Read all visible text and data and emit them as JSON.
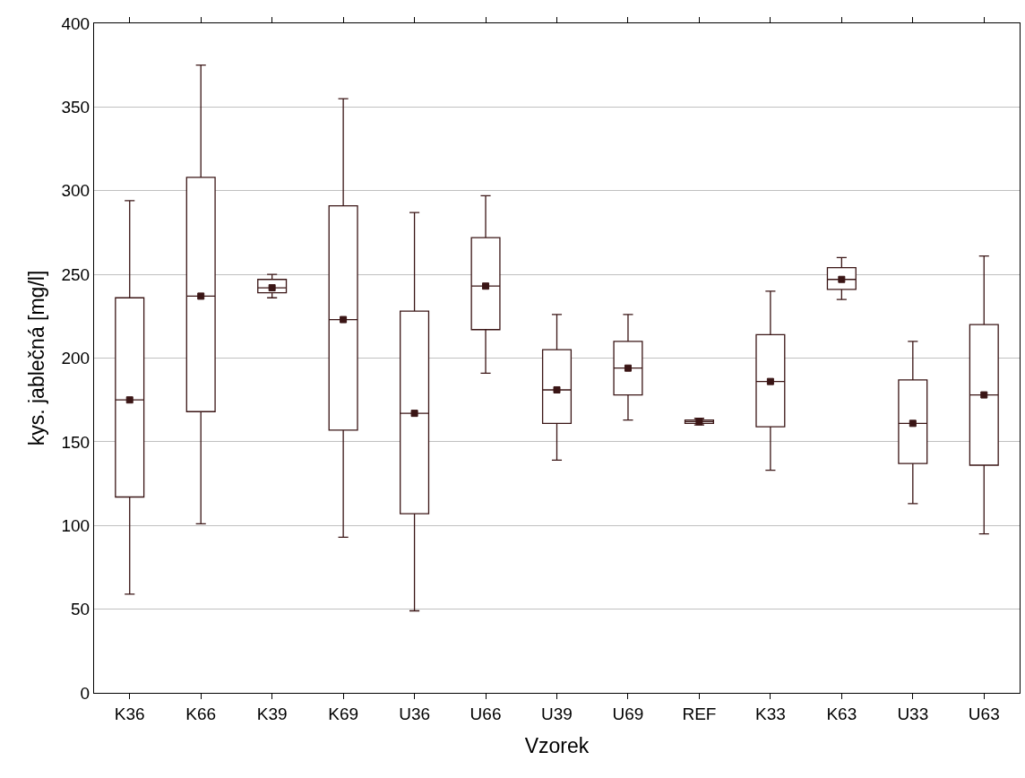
{
  "chart_data": {
    "type": "box",
    "xlabel": "Vzorek",
    "ylabel": "kys. jablečná [mg/l]",
    "categories": [
      "K36",
      "K66",
      "K39",
      "K69",
      "U36",
      "U66",
      "U39",
      "U69",
      "REF",
      "K33",
      "K63",
      "U33",
      "U63"
    ],
    "boxes": [
      {
        "low": 59,
        "q1": 117,
        "median": 175,
        "q3": 236,
        "high": 294
      },
      {
        "low": 101,
        "q1": 168,
        "median": 237,
        "q3": 308,
        "high": 375
      },
      {
        "low": 236,
        "q1": 239,
        "median": 242,
        "q3": 247,
        "high": 250
      },
      {
        "low": 93,
        "q1": 157,
        "median": 223,
        "q3": 291,
        "high": 355
      },
      {
        "low": 49,
        "q1": 107,
        "median": 167,
        "q3": 228,
        "high": 287
      },
      {
        "low": 191,
        "q1": 217,
        "median": 243,
        "q3": 272,
        "high": 297
      },
      {
        "low": 139,
        "q1": 161,
        "median": 181,
        "q3": 205,
        "high": 226
      },
      {
        "low": 163,
        "q1": 178,
        "median": 194,
        "q3": 210,
        "high": 226
      },
      {
        "low": 160,
        "q1": 161,
        "median": 162,
        "q3": 163,
        "high": 164
      },
      {
        "low": 133,
        "q1": 159,
        "median": 186,
        "q3": 214,
        "high": 240
      },
      {
        "low": 235,
        "q1": 241,
        "median": 247,
        "q3": 254,
        "high": 260
      },
      {
        "low": 113,
        "q1": 137,
        "median": 161,
        "q3": 187,
        "high": 210
      },
      {
        "low": 95,
        "q1": 136,
        "median": 178,
        "q3": 220,
        "high": 261
      }
    ],
    "color": "#3a1515",
    "series": [
      {
        "type": "scatter",
        "marker": "square",
        "color": "#3a1515",
        "x": [
          "K36",
          "K66",
          "K39",
          "K69",
          "U36",
          "U66",
          "U39",
          "U69",
          "REF",
          "K33",
          "K63",
          "U33",
          "U63"
        ],
        "values": [
          175,
          237,
          242,
          223,
          167,
          243,
          181,
          194,
          162,
          186,
          247,
          161,
          178
        ]
      }
    ],
    "ylim": [
      0,
      400
    ],
    "yticks": [
      0,
      50,
      100,
      150,
      200,
      250,
      300,
      350,
      400
    ],
    "grid": "y"
  }
}
